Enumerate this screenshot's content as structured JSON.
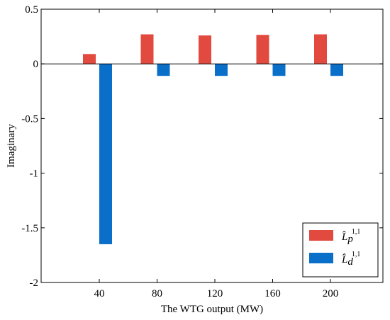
{
  "chart_data": {
    "type": "bar",
    "categories": [
      "40",
      "80",
      "120",
      "160",
      "200"
    ],
    "series": [
      {
        "name": "L̂p1,1",
        "legend_base": "L̂",
        "legend_sub": "p",
        "legend_sup": "1,1",
        "color": "#e2493f",
        "values": [
          0.09,
          0.27,
          0.26,
          0.265,
          0.27
        ]
      },
      {
        "name": "L̂d1,1",
        "legend_base": "L̂",
        "legend_sub": "d",
        "legend_sup": "1,1",
        "color": "#0a6fc9",
        "values": [
          -1.65,
          -0.11,
          -0.11,
          -0.11,
          -0.11
        ]
      }
    ],
    "xlabel": "The WTG output (MW)",
    "ylabel": "Imaginary",
    "ylim": [
      -2,
      0.5
    ],
    "yticks": [
      0.5,
      0,
      -0.5,
      -1,
      -1.5,
      -2
    ],
    "ytick_labels": [
      "0.5",
      "0",
      "-0.5",
      "-1",
      "-1.5",
      "-2"
    ],
    "legend_position": "bottom-right",
    "grid": false
  }
}
